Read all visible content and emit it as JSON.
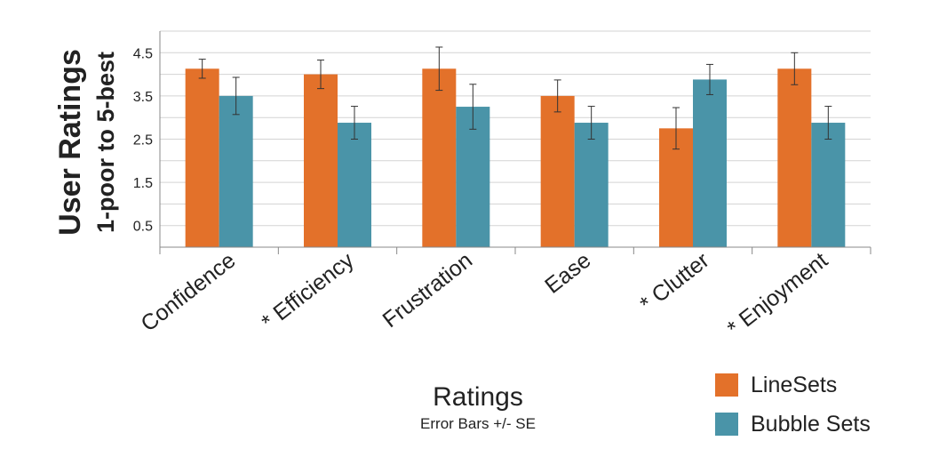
{
  "chart_data": {
    "type": "bar",
    "title": "",
    "ylabel": "User Ratings",
    "ylabel_sub": "1-poor to 5-best",
    "xlabel": "Ratings",
    "xlabel_sub": "Error Bars +/- SE",
    "y_ticks": [
      "0.5",
      "1.5",
      "2.5",
      "3.5",
      "4.5"
    ],
    "ylim": [
      0,
      5
    ],
    "grid": true,
    "legend_position": "bottom-right",
    "categories": [
      "Confidence",
      "* Efficiency",
      "Frustration",
      "Ease",
      "* Clutter",
      "* Enjoyment"
    ],
    "series": [
      {
        "name": "LineSets",
        "color": "#e3712a",
        "values": [
          4.13,
          4.0,
          4.13,
          3.5,
          2.75,
          4.13
        ],
        "errors": [
          0.22,
          0.33,
          0.5,
          0.37,
          0.48,
          0.37
        ]
      },
      {
        "name": "Bubble Sets",
        "color": "#4a94a8",
        "values": [
          3.5,
          2.88,
          3.25,
          2.88,
          3.88,
          2.88
        ],
        "errors": [
          0.43,
          0.38,
          0.52,
          0.38,
          0.35,
          0.38
        ]
      }
    ]
  }
}
